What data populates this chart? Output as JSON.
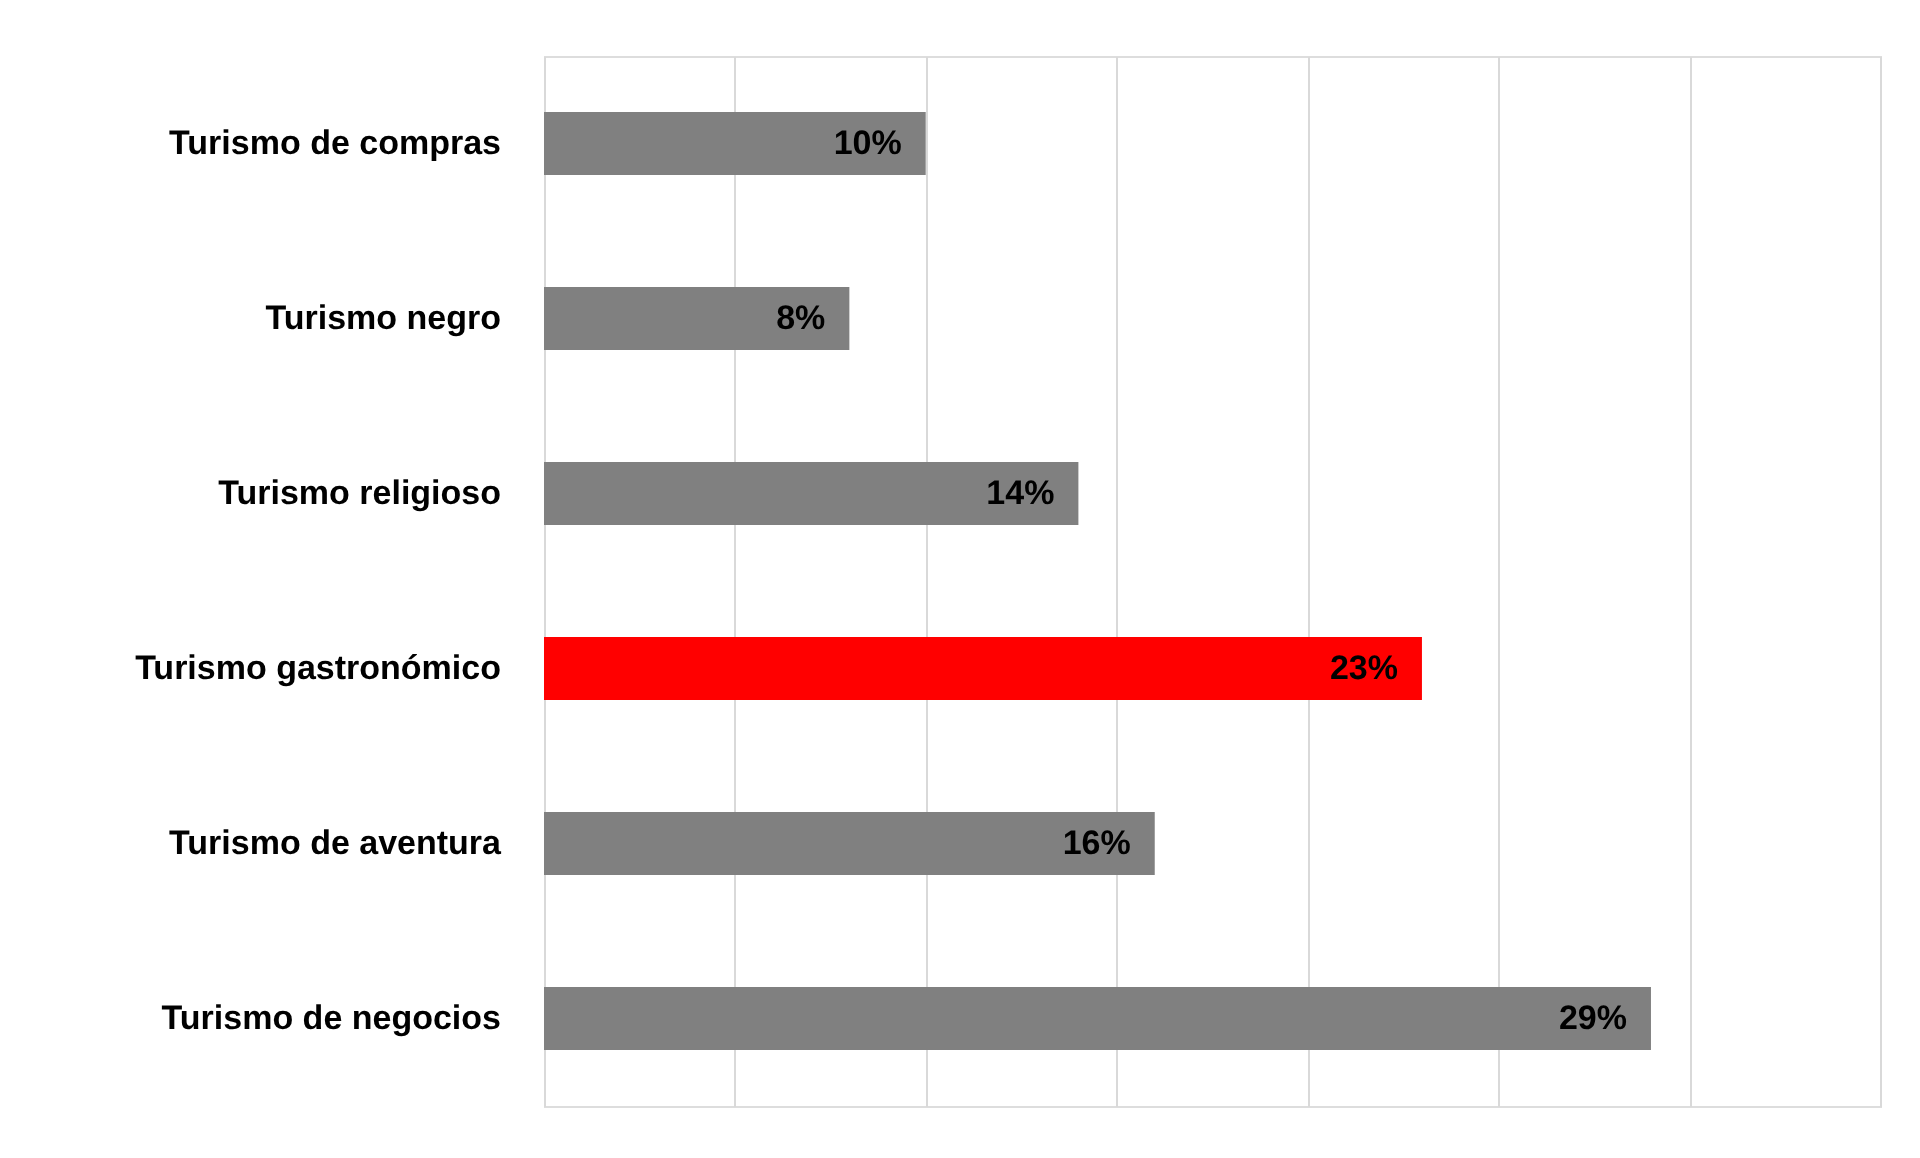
{
  "chart_data": {
    "type": "bar",
    "orientation": "horizontal",
    "categories": [
      "Turismo de compras",
      "Turismo negro",
      "Turismo religioso",
      "Turismo gastronómico",
      "Turismo de aventura",
      "Turismo de negocios"
    ],
    "values": [
      10,
      8,
      14,
      23,
      16,
      29
    ],
    "colors": [
      "#808080",
      "#808080",
      "#808080",
      "#ff0000",
      "#808080",
      "#808080"
    ],
    "value_labels": [
      "10%",
      "8%",
      "14%",
      "23%",
      "16%",
      "29%"
    ],
    "xlim": [
      0,
      35
    ],
    "xticks": [
      {
        "value": 0,
        "label": null
      },
      {
        "value": 5,
        "label": null
      },
      {
        "value": 10,
        "label": null
      },
      {
        "value": 15,
        "label": null
      },
      {
        "value": 20,
        "label": null
      },
      {
        "value": 25,
        "label": null
      },
      {
        "value": 30,
        "label": null
      },
      {
        "value": 35,
        "label": null
      }
    ],
    "grid": "x",
    "tick_labels": "y"
  }
}
